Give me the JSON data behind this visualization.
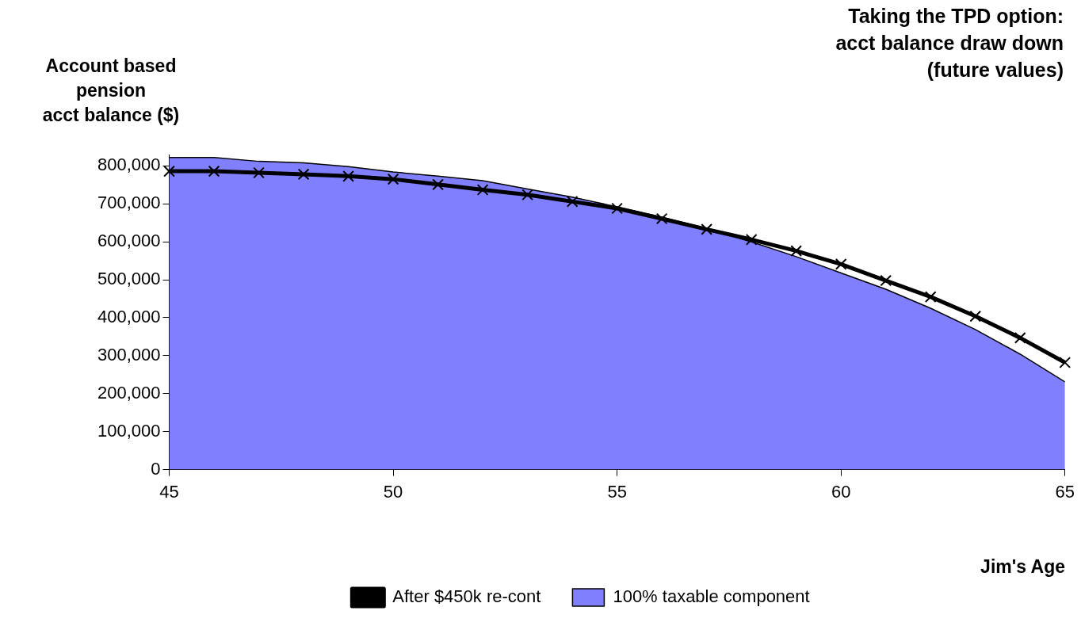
{
  "chart_data": {
    "type": "area",
    "title": "Taking the TPD option:\nacct balance draw down\n(future values)",
    "ylabel": "Account based\npension\nacct balance ($)",
    "xlabel": "Jim's Age",
    "x": [
      45,
      46,
      47,
      48,
      49,
      50,
      51,
      52,
      53,
      54,
      55,
      56,
      57,
      58,
      59,
      60,
      61,
      62,
      63,
      64,
      65
    ],
    "series": [
      {
        "name": "100% taxable component",
        "type": "area",
        "color": "#8080ff",
        "values": [
          822000,
          822000,
          812000,
          808000,
          798000,
          784000,
          773000,
          761000,
          739000,
          718000,
          692000,
          665000,
          635000,
          600000,
          561000,
          518000,
          475000,
          425000,
          369000,
          304000,
          231000
        ]
      },
      {
        "name": "After $450k re-cont",
        "type": "line",
        "color": "#000000",
        "marker": "cross",
        "values": [
          786000,
          786000,
          782000,
          778000,
          773000,
          765000,
          751000,
          737000,
          724000,
          706000,
          688000,
          661000,
          633000,
          606000,
          576000,
          541000,
          498000,
          455000,
          404000,
          347000,
          282000
        ]
      }
    ],
    "xlim": [
      45,
      65
    ],
    "xticks": [
      45,
      50,
      55,
      60,
      65
    ],
    "ylim": [
      0,
      830000
    ],
    "yticks": [
      0,
      {
        "value": 100000,
        "label": "100,000"
      },
      {
        "value": 200000,
        "label": "200,000"
      },
      {
        "value": 300000,
        "label": "300,000"
      },
      {
        "value": 400000,
        "label": "400,000"
      },
      {
        "value": 500000,
        "label": "500,000"
      },
      {
        "value": 600000,
        "label": "600,000"
      },
      {
        "value": 700000,
        "label": "700,000"
      },
      {
        "value": 800000,
        "label": "800,000"
      }
    ],
    "grid": false,
    "legend": "bottom"
  }
}
